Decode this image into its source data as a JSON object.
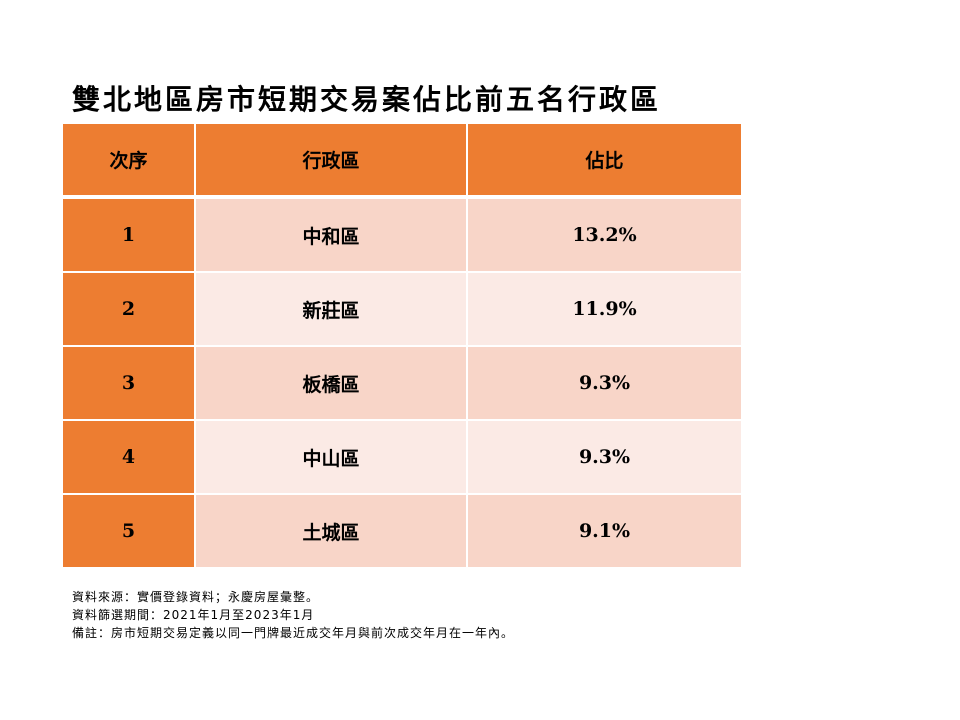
{
  "title": "雙北地區房市短期交易案佔比前五名行政區",
  "table": {
    "headers": [
      "次序",
      "行政區",
      "佔比"
    ],
    "rows": [
      {
        "rank": "1",
        "district": "中和區",
        "share": "13.2%"
      },
      {
        "rank": "2",
        "district": "新莊區",
        "share": "11.9%"
      },
      {
        "rank": "3",
        "district": "板橋區",
        "share": "9.3%"
      },
      {
        "rank": "4",
        "district": "中山區",
        "share": "9.3%"
      },
      {
        "rank": "5",
        "district": "土城區",
        "share": "9.1%"
      }
    ]
  },
  "notes": [
    "資料來源：實價登錄資料；永慶房屋彙整。",
    "資料篩選期間：2021年1月至2023年1月",
    "備註：房市短期交易定義以同一門牌最近成交年月與前次成交年月在一年內。"
  ],
  "colors": {
    "header_orange": "#ED7D31",
    "row_dark": "#F8D5C8",
    "row_light": "#FBEAE5"
  }
}
